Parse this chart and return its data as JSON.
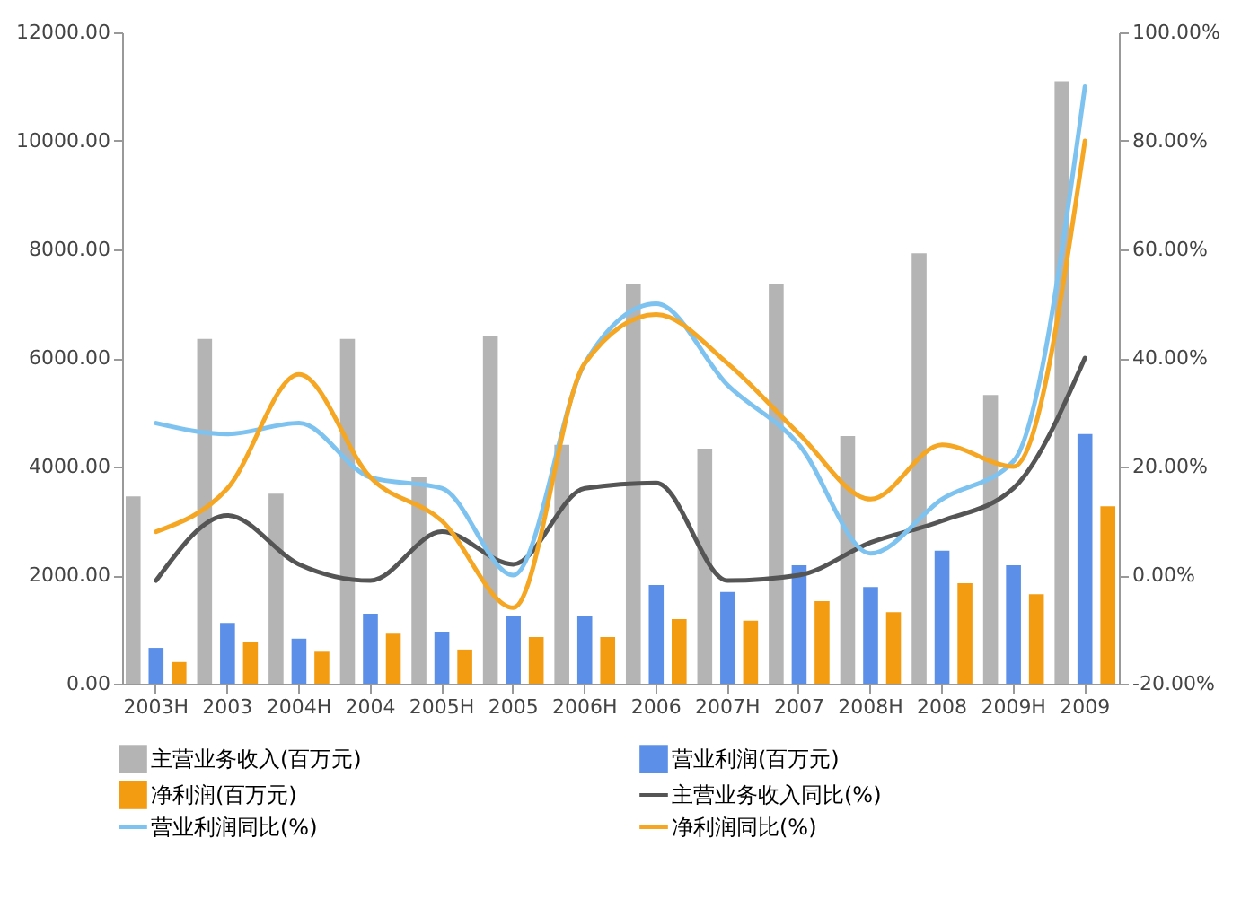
{
  "chart_data": {
    "type": "bar",
    "categories": [
      "2003H",
      "2003",
      "2004H",
      "2004",
      "2005H",
      "2005",
      "2006H",
      "2006",
      "2007H",
      "2007",
      "2008H",
      "2008",
      "2009H",
      "2009"
    ],
    "series": [
      {
        "name": "主营业务收入(百万元)",
        "type": "bar",
        "color": "#b4b4b4",
        "values": [
          3450,
          6350,
          3500,
          6350,
          3800,
          6400,
          4400,
          7370,
          4330,
          7370,
          4560,
          7930,
          5320,
          11100
        ]
      },
      {
        "name": "营业利润(百万元)",
        "type": "bar",
        "color": "#5b8fe8",
        "values": [
          660,
          1120,
          830,
          1290,
          960,
          1250,
          1250,
          1820,
          1690,
          2180,
          1780,
          2450,
          2180,
          4600
        ]
      },
      {
        "name": "净利润(百万元)",
        "type": "bar",
        "color": "#f39c12",
        "values": [
          400,
          760,
          590,
          920,
          630,
          860,
          860,
          1190,
          1160,
          1520,
          1320,
          1850,
          1650,
          3270
        ]
      },
      {
        "name": "主营业务收入同比(%)",
        "type": "line",
        "axis": "y2",
        "color": "#555555",
        "values": [
          -1,
          11,
          2,
          -1,
          8,
          2,
          16,
          17,
          -1,
          0,
          6,
          10,
          16,
          40
        ]
      },
      {
        "name": "营业利润同比(%)",
        "type": "line",
        "axis": "y2",
        "color": "#7ec3f0",
        "values": [
          28,
          26,
          28,
          18,
          16,
          0,
          39,
          50,
          35,
          24,
          4,
          14,
          21,
          90
        ]
      },
      {
        "name": "净利润同比(%)",
        "type": "line",
        "axis": "y2",
        "color": "#f5a623",
        "values": [
          8,
          16,
          37,
          18,
          10,
          -6,
          39,
          48,
          39,
          26,
          14,
          24,
          20,
          80
        ]
      }
    ],
    "ylim": [
      0,
      12000
    ],
    "yticks": [
      {
        "value": 0,
        "label": "0.00"
      },
      {
        "value": 2000,
        "label": "2000.00"
      },
      {
        "value": 4000,
        "label": "4000.00"
      },
      {
        "value": 6000,
        "label": "6000.00"
      },
      {
        "value": 8000,
        "label": "8000.00"
      },
      {
        "value": 10000,
        "label": "10000.00"
      },
      {
        "value": 12000,
        "label": "12000.00"
      }
    ],
    "y2lim": [
      -20,
      100
    ],
    "y2ticks": [
      {
        "value": -20,
        "label": "-20.00%"
      },
      {
        "value": 0,
        "label": "0.00%"
      },
      {
        "value": 20,
        "label": "20.00%"
      },
      {
        "value": 40,
        "label": "40.00%"
      },
      {
        "value": 60,
        "label": "60.00%"
      },
      {
        "value": 80,
        "label": "80.00%"
      },
      {
        "value": 100,
        "label": "100.00%"
      }
    ],
    "grid": false,
    "legend": "bottom",
    "marker": "none",
    "line_style": "solid"
  }
}
